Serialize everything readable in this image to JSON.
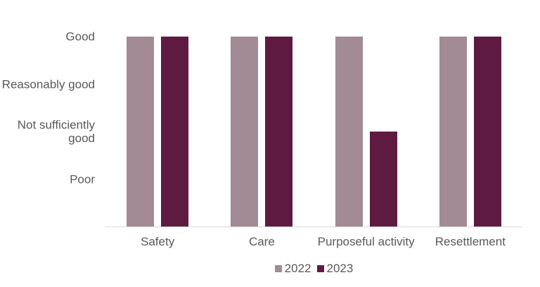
{
  "chart_data": {
    "type": "bar",
    "title": "",
    "orientation": "vertical",
    "categories": [
      "Safety",
      "Care",
      "Purposeful activity",
      "Resettlement"
    ],
    "series": [
      {
        "name": "2022",
        "color": "#a28b95",
        "values": [
          4,
          4,
          4,
          4
        ],
        "value_labels": [
          "Good",
          "Good",
          "Good",
          "Good"
        ]
      },
      {
        "name": "2023",
        "color": "#5f1a41",
        "values": [
          4,
          4,
          2,
          4
        ],
        "value_labels": [
          "Good",
          "Good",
          "Not sufficiently good",
          "Good"
        ]
      }
    ],
    "y_ticks": [
      {
        "value": 4,
        "label": "Good"
      },
      {
        "value": 3,
        "label": "Reasonably good"
      },
      {
        "value": 2,
        "label": "Not sufficiently good"
      },
      {
        "value": 1,
        "label": "Poor"
      }
    ],
    "ylim": [
      0,
      4
    ],
    "xlabel": "",
    "ylabel": "",
    "grid": false,
    "legend_position": "bottom",
    "colors": {
      "background": "#ffffff",
      "text": "#595959",
      "axis_line": "#d9d9d9"
    }
  }
}
